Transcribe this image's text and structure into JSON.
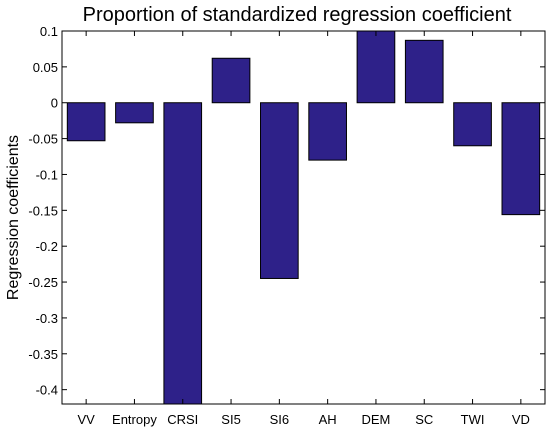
{
  "chart_data": {
    "type": "bar",
    "title": "Proportion of standardized regression coefficient",
    "xlabel": "",
    "ylabel": "Regression coefficients",
    "categories": [
      "VV",
      "Entropy",
      "CRSI",
      "SI5",
      "SI6",
      "AH",
      "DEM",
      "SC",
      "TWI",
      "VD"
    ],
    "values": [
      -0.053,
      -0.028,
      -0.42,
      0.062,
      -0.245,
      -0.08,
      0.1,
      0.087,
      -0.06,
      -0.156
    ],
    "ylim": [
      -0.42,
      0.1
    ],
    "yticks": [
      0.1,
      0.05,
      0,
      -0.05,
      -0.1,
      -0.15,
      -0.2,
      -0.25,
      -0.3,
      -0.35,
      -0.4
    ],
    "ytick_labels": [
      "0.1",
      "0.05",
      "0",
      "-0.05",
      "-0.1",
      "-0.15",
      "-0.2",
      "-0.25",
      "-0.3",
      "-0.35",
      "-0.4"
    ],
    "grid": false,
    "legend": "none",
    "bar_color": "#2e2189"
  }
}
